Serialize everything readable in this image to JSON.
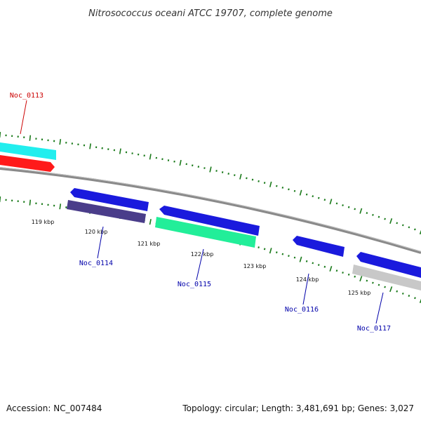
{
  "title": "Nitrosococcus oceani ATCC 19707, complete genome",
  "footer": {
    "accession": "Accession: NC_007484",
    "summary": "Topology: circular; Length: 3,481,691 bp; Genes: 3,027"
  },
  "colors": {
    "backbone": "#8a8a8a",
    "tick": "#1a7a1a",
    "forward_label": "#cc0000",
    "reverse_label": "#0000aa"
  },
  "tick_labels": [
    "119 kbp",
    "120 kbp",
    "121 kbp",
    "122 kbp",
    "123 kbp",
    "124 kbp",
    "125 kbp"
  ],
  "genes": [
    {
      "label": "Noc_0113",
      "strand": "forward",
      "color": "#ff1a1a",
      "cog_color": "#22eeee"
    },
    {
      "label": "Noc_0114",
      "strand": "reverse",
      "color": "#1a1add",
      "cog_color": "#4a3d8a"
    },
    {
      "label": "Noc_0115",
      "strand": "reverse",
      "color": "#1a1add",
      "cog_color": "#22ee99"
    },
    {
      "label": "Noc_0116",
      "strand": "reverse",
      "color": "#1a1add",
      "cog_color": ""
    },
    {
      "label": "Noc_0117",
      "strand": "reverse",
      "color": "#1a1add",
      "cog_color": "#c8c8c8"
    }
  ]
}
